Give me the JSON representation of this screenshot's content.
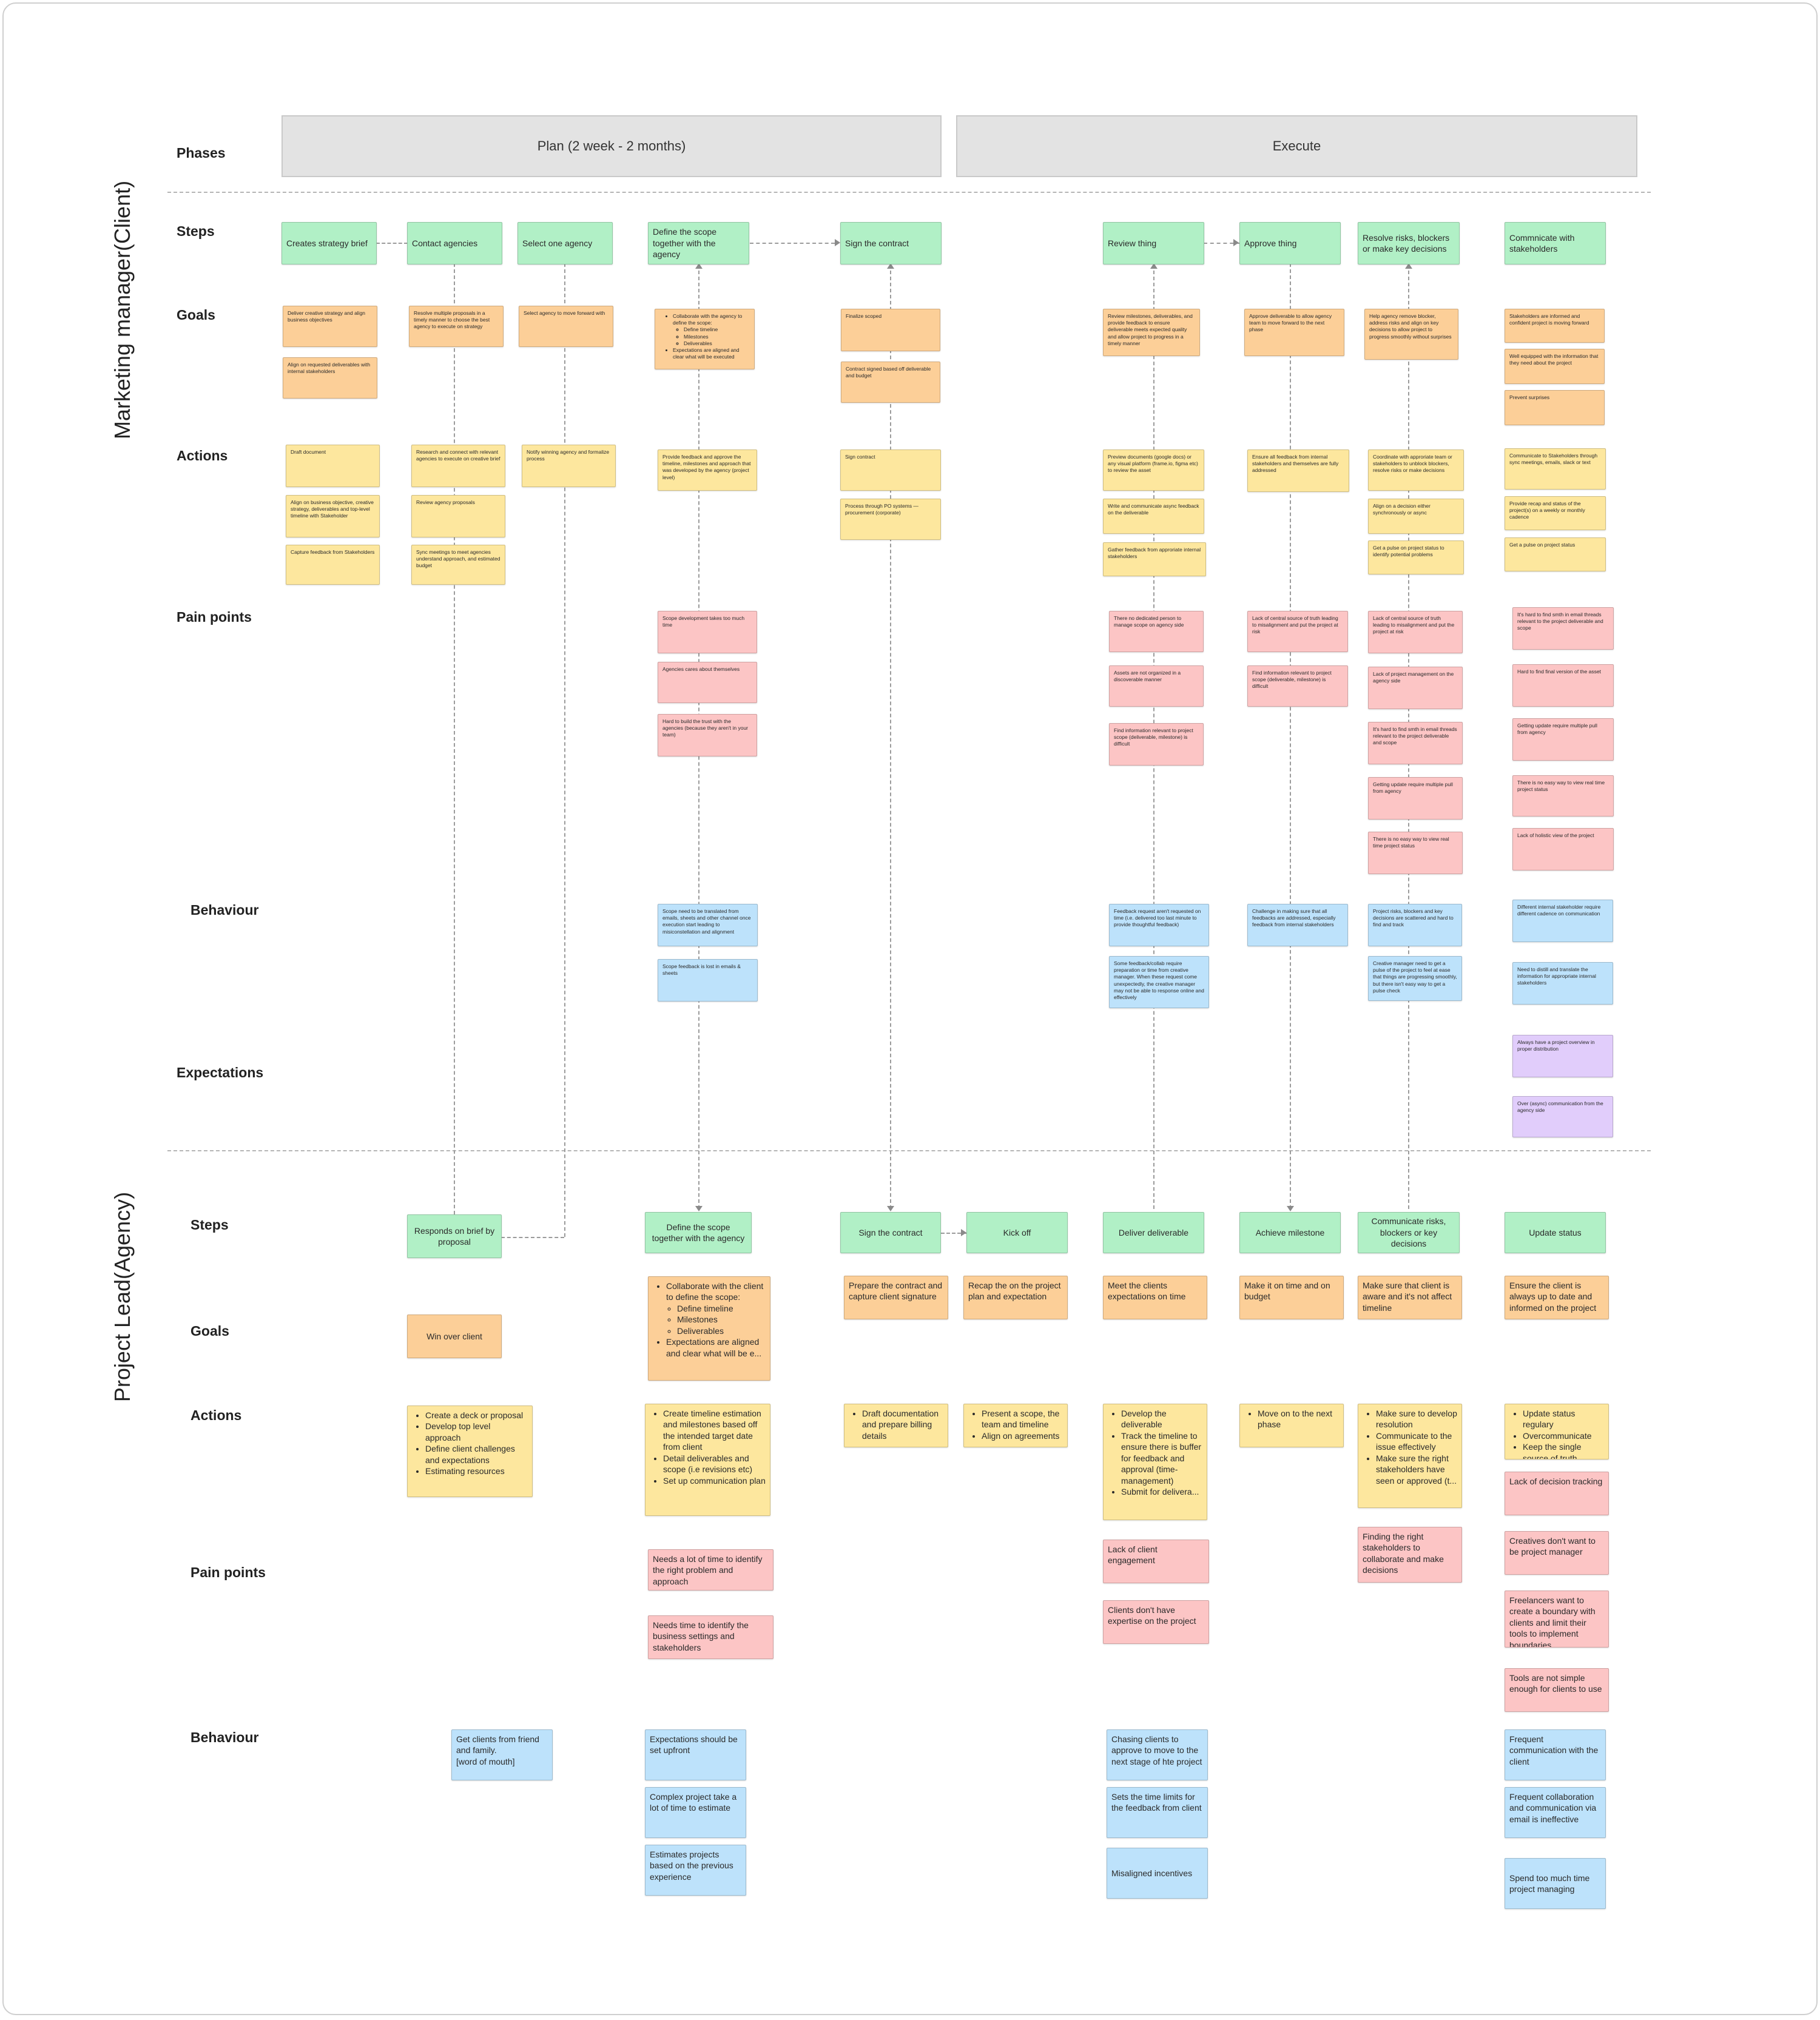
{
  "labels": {
    "phases": "Phases",
    "steps": "Steps",
    "goals": "Goals",
    "actions": "Actions",
    "pain_points": "Pain points",
    "behaviour": "Behaviour",
    "expectations": "Expectations"
  },
  "lanes": {
    "client": "Marketing manager(Client)",
    "agency": "Project Lead(Agency)"
  },
  "phases": [
    "Plan (2 week - 2 months)",
    "Execute"
  ],
  "colors": {
    "step": "#b1f0c6",
    "goal": "#fccf98",
    "action": "#fde79e",
    "pain_point": "#fcc5c5",
    "behaviour": "#bde2fb",
    "expectation": "#e1cdfb",
    "phase_bar": "#e3e3e3"
  },
  "client": {
    "steps": [
      "Creates strategy brief",
      "Contact agencies",
      "Select one agency",
      "Define the scope together with the agency",
      "Sign the contract",
      "Review thing",
      "Approve thing",
      "Resolve risks, blockers or make key decisions",
      "Commnicate with stakeholders"
    ],
    "goals": {
      "strategy": [
        "Deliver creative strategy and align business objectives",
        "Align on requested deliverables with internal stakeholders"
      ],
      "contact": "Resolve multiple proposals in a timely manner to choose the best agency to execute on strategy",
      "select": "Select agency to move forward with",
      "scope_intro": "Collaborate with the agency to define the scope:",
      "scope_sub": [
        "Define timeline",
        "Milestones",
        "Deliverables"
      ],
      "scope_last": "Expectations are aligned and clear what will be executed",
      "contract": [
        "Finalize scoped",
        "Contract signed based off deliverable and budget"
      ],
      "review": "Review milestones, deliverables, and provide feedback to ensure deliverable meets expected quality and allow project to progress in a timely manner",
      "approve": "Approve deliverable to allow agency team to move forward to the next phase",
      "resolve": "Help agency remove blocker, address risks and align on key decisions to allow project to progress smoothly without surprises",
      "communicate": [
        "Stakeholders are informed and confident project is moving forward",
        "Well equipped with the information that they need about the project",
        "Prevent surprises"
      ]
    },
    "actions": {
      "strategy": [
        "Draft document",
        "Align on business objective, creative strategy, deliverables and top-level timeline with Stakeholder",
        "Capture feedback from Stakeholders"
      ],
      "contact": [
        "Research and connect with relevant agencies to execute on creative brief",
        "Review agency proposals",
        "Sync meetings to meet agencies understand approach, and estimated budget"
      ],
      "select": "Notify winning agency and formalize process",
      "scope": "Provide feedback and approve the timeline, milestones and approach that was developed by the agency (project level)",
      "contract": [
        "Sign contract",
        "Process through PO systems — procurement (corporate)"
      ],
      "review": [
        "Preview documents (google docs) or any visual platform (frame.io, figma etc) to review the asset",
        "Write and communicate async feedback on the deliverable",
        "Gather feedback from approriate internal stakeholders"
      ],
      "approve": "Ensure all feedback from internal stakeholders and themselves are fully addressed",
      "resolve": [
        "Coordinate with approriate team or stakeholders to unblock blockers, resolve risks or make decisions",
        "Align on a decision either synchronously or async",
        "Get a pulse on project status to identify potential problems"
      ],
      "communicate": [
        "Communicate to Stakeholders through sync meetings, emails, slack or text",
        "Provide recap and status of the project(s) on a weekly or monthly cadence",
        "Get a pulse on project status"
      ]
    },
    "pains": {
      "scope": [
        "Scope development takes too much time",
        "Agencies cares about themselves",
        "Hard to build the trust with the agencies (because they aren't in your team)"
      ],
      "review": [
        "There no dedicated person to manage scope on agency side",
        "Assets are not organized in a discoverable manner",
        "Find information relevant to project scope (deliverable, milestone) is difficult"
      ],
      "approve": [
        "Lack of central source of truth leading to misalignment and put the project at risk",
        "Find information relevant to project scope (deliverable, milestone) is difficult"
      ],
      "resolve": [
        "Lack of central source of truth leading to misalignment and put the project at risk",
        "Lack of project management on the agency side",
        "It's hard to find smth in email threads relevant to the project deliverable and scope",
        "Getting update require multiple pull from agency",
        "There is no easy way to view real time project status"
      ],
      "communicate": [
        "It's hard to find smth in email threads relevant to the project deliverable and scope",
        "Hard to find final version of the asset",
        "Getting update require multiple pull from agency",
        "There is no easy way to view real time project status",
        "Lack of holistic view of the project"
      ]
    },
    "behaviour": {
      "scope": [
        "Scope need to be translated from emails, sheets and other channel once execution start leading to misiconstellation and alignment",
        "Scope feedback is lost in emails & sheets"
      ],
      "review": [
        "Feedback request aren't requested on time (i.e. delivered too last minute to provide thoughtful feedback)",
        "Some feedback/collab require preparation or time from creative manager. When these request come unexpectedly, the creative manager may not be able to response online and effectively"
      ],
      "approve": "Challenge in making sure that all feedbacks are addressed, especially feedback from internal stakeholders",
      "resolve": [
        "Project risks, blockers and key decisions are scattered and hard to find and track",
        "Creative manager need to get a pulse of the project to feel at ease that things are progressing smoothly, but there isn't easy way to get a pulse check"
      ],
      "communicate": [
        "Different internal stakeholder require different cadence on communication",
        "Need to distill and translate the information for appropriate internal stakeholders"
      ]
    },
    "expectations": [
      "Always have a project overview in proper distribution",
      "Over (async) communication from the agency side"
    ]
  },
  "agency": {
    "steps": [
      "Responds on brief by proposal",
      "Define the scope together with the agency",
      "Sign the contract",
      "Kick off",
      "Deliver deliverable",
      "Achieve milestone",
      "Communicate risks, blockers or key decisions",
      "Update status"
    ],
    "goals": {
      "respond": "Win over client",
      "scope_intro": "Collaborate with the client to define the scope:",
      "scope_sub": [
        "Define timeline",
        "Milestones",
        "Deliverables"
      ],
      "scope_last": "Expectations are aligned and clear what will be e...",
      "contract": "Prepare the contract and capture client signature",
      "kickoff": "Recap the on the project plan and expectation",
      "deliver": "Meet the clients expectations on time",
      "milestone": "Make it on time and on budget",
      "communicate": "Make sure that client is aware and it's not affect timeline",
      "status": "Ensure the client is always up to date and informed on the project"
    },
    "actions": {
      "respond": [
        "Create a deck or proposal",
        "Develop top level approach",
        "Define client challenges and expectations",
        "Estimating resources"
      ],
      "scope": [
        "Create timeline estimation and milestones based off the intended target date from client",
        "Detail deliverables and scope (i.e revisions etc)",
        "Set up communication plan"
      ],
      "contract": [
        "Draft documentation and prepare billing details"
      ],
      "kickoff": [
        "Present a scope, the team and timeline",
        "Align on agreements"
      ],
      "deliver": [
        "Develop the deliverable",
        "Track the timeline to ensure there is buffer for feedback and approval (time-management)",
        "Submit for delivera..."
      ],
      "milestone": [
        "Move on to the next phase"
      ],
      "communicate": [
        "Make sure to develop resolution",
        "Communicate to the issue effectively",
        "Make sure the right stakeholders have seen or approved (t..."
      ],
      "status": [
        "Update status regulary",
        "Overcommunicate",
        "Keep the single source of truth updated"
      ]
    },
    "pains": {
      "scope": [
        "Needs a lot of  time to identify the right problem and approach",
        "Needs time to identify the business settings and stakeholders"
      ],
      "deliver": [
        "Lack of client engagement",
        "Clients don't have expertise on the project"
      ],
      "communicate": [
        "Finding the right stakeholders to collaborate and make decisions"
      ],
      "status": [
        "Lack of decision tracking",
        "Creatives don't want to be project manager",
        "Freelancers want to create a boundary with clients and limit their tools to implement boundaries",
        "Tools are not simple enough for clients to use"
      ]
    },
    "behaviour": {
      "respond": [
        "Get clients from friend and family.",
        "[word of mouth]"
      ],
      "scope": [
        "Expectations should be set upfront",
        "Complex project take a lot of time to estimate",
        "Estimates projects based on the previous experience"
      ],
      "deliver": [
        "Chasing clients to approve to move to the next stage of hte project",
        "Sets the time limits for the feedback from client",
        "Misaligned incentives"
      ],
      "status": [
        "Frequent communication with the client",
        "Frequent collaboration and communication via email is ineffective",
        "Spend too much time project managing"
      ]
    }
  }
}
